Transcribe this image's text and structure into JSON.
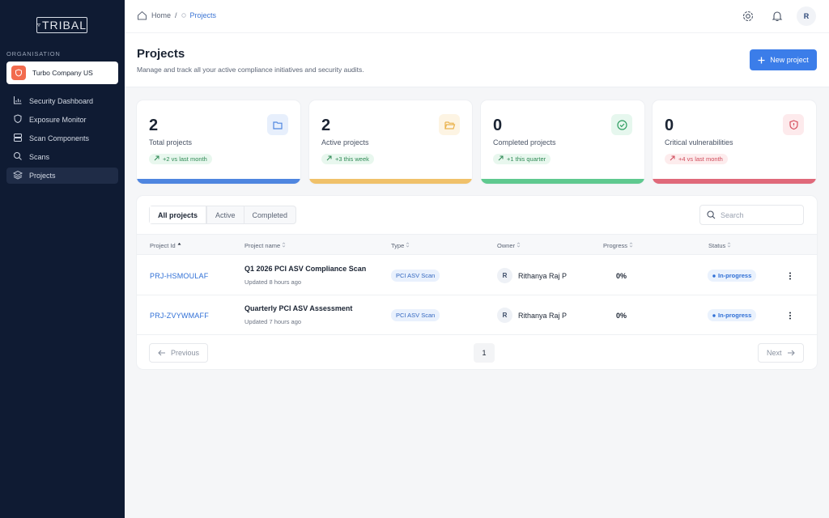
{
  "sidebar": {
    "logo": "TRIBAL",
    "org_label": "ORGANISATION",
    "org_name": "Turbo Company US",
    "nav": [
      "Security Dashboard",
      "Exposure Monitor",
      "Scan Components",
      "Scans",
      "Projects"
    ],
    "active": 4
  },
  "topbar": {
    "breadcrumb": [
      "Home",
      "Projects"
    ],
    "separator": "/",
    "avatar": "R"
  },
  "header": {
    "title": "Projects",
    "subtitle": "Manage and track all your active compliance initiatives and security audits.",
    "button": "New project"
  },
  "stats": [
    {
      "value": 2,
      "label": "Total projects",
      "trend": "+2 vs last month",
      "color": "#4f86e0",
      "trend_color": "green"
    },
    {
      "value": 2,
      "label": "Active projects",
      "trend": "+3 this week",
      "color": "#f0c16a",
      "trend_color": "green"
    },
    {
      "value": 0,
      "label": "Completed projects",
      "trend": "+1 this quarter",
      "color": "#5fc98f",
      "trend_color": "green"
    },
    {
      "value": 0,
      "label": "Critical vulnerabilities",
      "trend": "+4 vs last month",
      "color": "#e0697a",
      "trend_color": "red"
    }
  ],
  "table": {
    "tabs": [
      "All projects",
      "Active",
      "Completed"
    ],
    "search": "Search",
    "columns": [
      "Project Id",
      "Project name",
      "Type",
      "Owner",
      "Progress",
      "Status"
    ],
    "rows": [
      {
        "id": "PRJ-HSMOULAF",
        "name": "Q1 2026 PCI ASV Compliance Scan",
        "updated": "Updated 8 hours ago",
        "type": "PCI ASV Scan",
        "owner_initial": "R",
        "owner": "Rithanya Raj P",
        "progress": "0%",
        "status": "In-progress"
      },
      {
        "id": "PRJ-ZVYWMAFF",
        "name": "Quarterly PCI ASV Assessment",
        "updated": "Updated 7 hours ago",
        "type": "PCI ASV Scan",
        "owner_initial": "R",
        "owner": "Rithanya Raj P",
        "progress": "0%",
        "status": "In-progress"
      }
    ]
  },
  "pagination": {
    "previous": "Previous",
    "page": 1,
    "next": "Next"
  }
}
